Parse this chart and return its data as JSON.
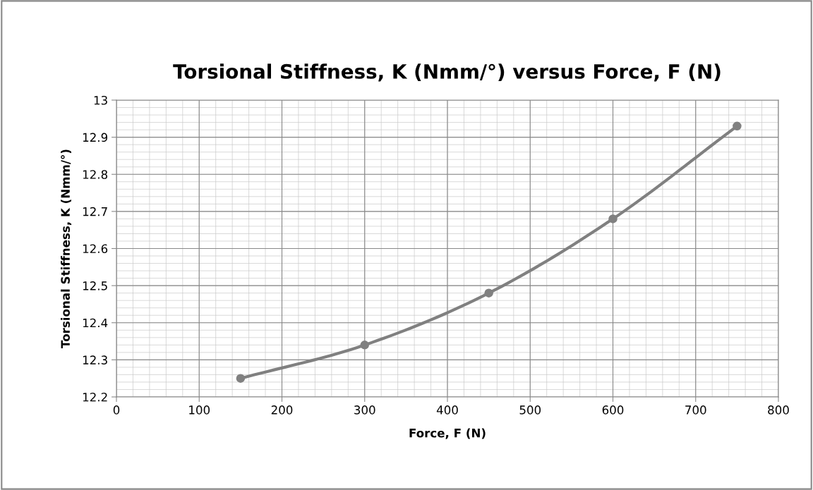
{
  "chart_data": {
    "type": "line",
    "title": "Torsional Stiffness, K (Nmm/°) versus Force, F (N)",
    "xlabel": "Force, F (N)",
    "ylabel": "Torsional Stiffness, K (Nmm/°)",
    "x": [
      150,
      300,
      450,
      600,
      750
    ],
    "series": [
      {
        "color": "#808080",
        "values": [
          12.25,
          12.34,
          12.48,
          12.68,
          12.93
        ]
      }
    ],
    "xlim": [
      0,
      800
    ],
    "xticks": [
      0,
      100,
      200,
      300,
      400,
      500,
      600,
      700,
      800
    ],
    "ylim": [
      12.2,
      13
    ],
    "yticks": [
      12.2,
      12.3,
      12.4,
      12.5,
      12.6,
      12.7,
      12.8,
      12.9,
      13
    ],
    "grid": true,
    "marker": "circle",
    "line_style": "solid"
  }
}
